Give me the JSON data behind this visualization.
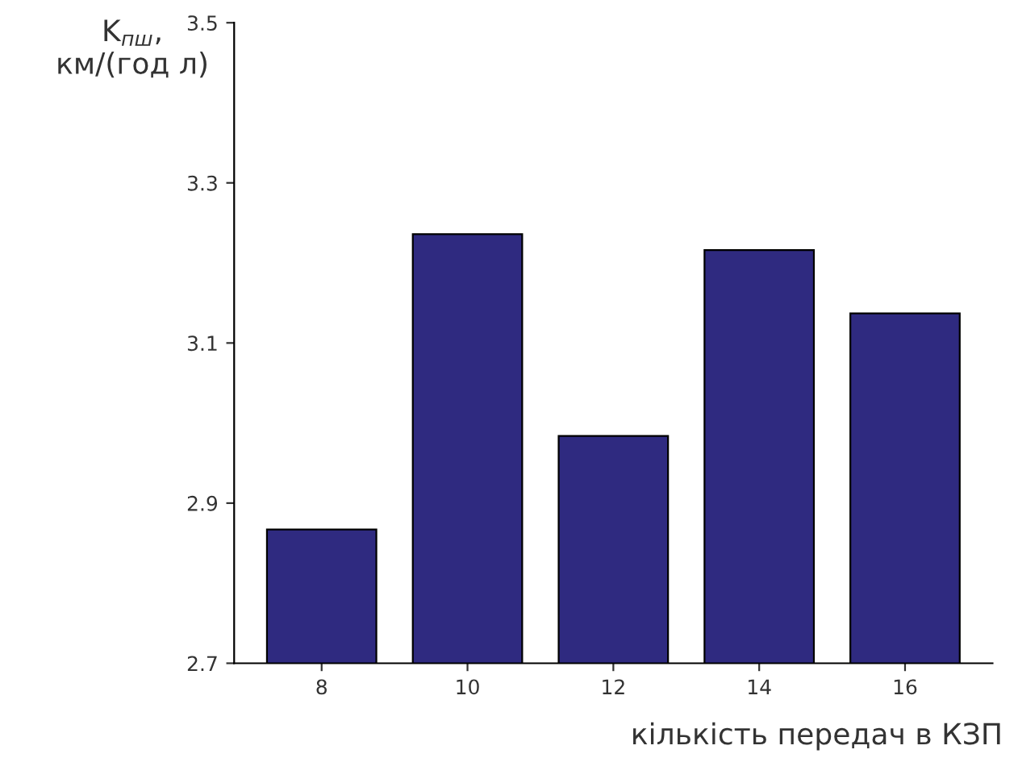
{
  "chart_data": {
    "type": "bar",
    "xlabel": "кількість передач в КЗП",
    "ylabel": "K$_{пш}$,\nкм/(год л)",
    "categories": [
      "8",
      "10",
      "12",
      "14",
      "16"
    ],
    "values": [
      2.867,
      3.236,
      2.984,
      3.216,
      3.137
    ],
    "color": "#2f2a80",
    "ylim": [
      2.7,
      3.5
    ],
    "yticks": [
      2.7,
      2.9,
      3.1,
      3.3,
      3.5
    ],
    "grid": false
  }
}
